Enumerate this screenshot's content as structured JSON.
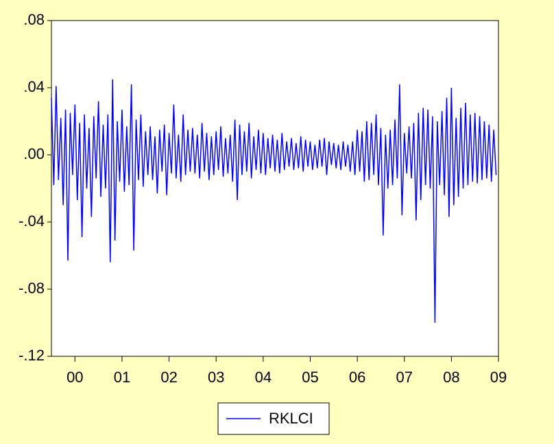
{
  "chart_data": {
    "type": "line",
    "x": [
      2000,
      2000.05,
      2000.1,
      2000.15,
      2000.2,
      2000.25,
      2000.3,
      2000.35,
      2000.4,
      2000.45,
      2000.5,
      2000.55,
      2000.6,
      2000.65,
      2000.7,
      2000.75,
      2000.8,
      2000.85,
      2000.9,
      2000.95,
      2001,
      2001.05,
      2001.1,
      2001.15,
      2001.2,
      2001.25,
      2001.3,
      2001.35,
      2001.4,
      2001.45,
      2001.5,
      2001.55,
      2001.6,
      2001.65,
      2001.7,
      2001.75,
      2001.8,
      2001.85,
      2001.9,
      2001.95,
      2002,
      2002.05,
      2002.1,
      2002.15,
      2002.2,
      2002.25,
      2002.3,
      2002.35,
      2002.4,
      2002.45,
      2002.5,
      2002.55,
      2002.6,
      2002.65,
      2002.7,
      2002.75,
      2002.8,
      2002.85,
      2002.9,
      2002.95,
      2003,
      2003.05,
      2003.1,
      2003.15,
      2003.2,
      2003.25,
      2003.3,
      2003.35,
      2003.4,
      2003.45,
      2003.5,
      2003.55,
      2003.6,
      2003.65,
      2003.7,
      2003.75,
      2003.8,
      2003.85,
      2003.9,
      2003.95,
      2004,
      2004.05,
      2004.1,
      2004.15,
      2004.2,
      2004.25,
      2004.3,
      2004.35,
      2004.4,
      2004.45,
      2004.5,
      2004.55,
      2004.6,
      2004.65,
      2004.7,
      2004.75,
      2004.8,
      2004.85,
      2004.9,
      2004.95,
      2005,
      2005.05,
      2005.1,
      2005.15,
      2005.2,
      2005.25,
      2005.3,
      2005.35,
      2005.4,
      2005.45,
      2005.5,
      2005.55,
      2005.6,
      2005.65,
      2005.7,
      2005.75,
      2005.8,
      2005.85,
      2005.9,
      2005.95,
      2006,
      2006.05,
      2006.1,
      2006.15,
      2006.2,
      2006.25,
      2006.3,
      2006.35,
      2006.4,
      2006.45,
      2006.5,
      2006.55,
      2006.6,
      2006.65,
      2006.7,
      2006.75,
      2006.8,
      2006.85,
      2006.9,
      2006.95,
      2007,
      2007.05,
      2007.1,
      2007.15,
      2007.2,
      2007.25,
      2007.3,
      2007.35,
      2007.4,
      2007.45,
      2007.5,
      2007.55,
      2007.6,
      2007.65,
      2007.7,
      2007.75,
      2007.8,
      2007.85,
      2007.9,
      2007.95,
      2008,
      2008.05,
      2008.1,
      2008.15,
      2008.2,
      2008.25,
      2008.3,
      2008.35,
      2008.4,
      2008.45,
      2008.5,
      2008.55,
      2008.6,
      2008.65,
      2008.7,
      2008.75,
      2008.8,
      2008.85,
      2008.9,
      2008.95,
      2009,
      2009.05,
      2009.1,
      2009.15,
      2009.2,
      2009.25,
      2009.3,
      2009.35,
      2009.4,
      2009.45
    ],
    "series": [
      {
        "name": "RKLCI",
        "color": "#0000ff",
        "values": [
          0.034,
          -0.018,
          0.041,
          -0.015,
          0.022,
          -0.03,
          0.027,
          -0.063,
          0.025,
          -0.012,
          0.03,
          -0.027,
          0.019,
          -0.049,
          0.024,
          -0.02,
          0.016,
          -0.037,
          0.023,
          -0.014,
          0.032,
          -0.025,
          0.018,
          -0.02,
          0.024,
          -0.064,
          0.045,
          -0.051,
          0.02,
          -0.016,
          0.027,
          -0.022,
          0.017,
          -0.018,
          0.042,
          -0.057,
          0.021,
          -0.015,
          0.024,
          -0.019,
          0.014,
          -0.012,
          0.017,
          -0.015,
          0.011,
          -0.023,
          0.015,
          -0.01,
          0.018,
          -0.024,
          0.013,
          -0.011,
          0.03,
          -0.014,
          0.012,
          -0.016,
          0.024,
          -0.012,
          0.015,
          -0.01,
          0.016,
          -0.011,
          0.012,
          -0.014,
          0.019,
          -0.01,
          0.013,
          -0.015,
          0.011,
          -0.012,
          0.014,
          -0.009,
          0.017,
          -0.013,
          0.01,
          -0.011,
          0.012,
          -0.016,
          0.021,
          -0.027,
          0.018,
          -0.012,
          0.014,
          -0.01,
          0.019,
          -0.014,
          0.011,
          -0.009,
          0.015,
          -0.011,
          0.013,
          -0.012,
          0.01,
          -0.008,
          0.012,
          -0.01,
          0.009,
          -0.011,
          0.013,
          -0.009,
          0.008,
          -0.007,
          0.01,
          -0.009,
          0.007,
          -0.008,
          0.011,
          -0.01,
          0.009,
          -0.007,
          0.008,
          -0.009,
          0.006,
          -0.008,
          0.009,
          -0.007,
          0.01,
          -0.012,
          0.008,
          -0.006,
          0.007,
          -0.008,
          0.006,
          -0.009,
          0.008,
          -0.007,
          0.006,
          -0.01,
          0.008,
          -0.012,
          0.015,
          -0.01,
          0.014,
          -0.016,
          0.02,
          -0.015,
          0.019,
          -0.012,
          0.024,
          -0.018,
          0.016,
          -0.048,
          0.012,
          -0.02,
          0.015,
          -0.018,
          0.021,
          -0.014,
          0.042,
          -0.036,
          0.013,
          -0.011,
          0.017,
          -0.014,
          0.019,
          -0.039,
          0.025,
          -0.027,
          0.028,
          -0.018,
          0.027,
          -0.02,
          0.023,
          -0.1,
          0.02,
          -0.018,
          0.026,
          -0.024,
          0.034,
          -0.037,
          0.04,
          -0.03,
          0.022,
          -0.025,
          0.028,
          -0.02,
          0.031,
          -0.018,
          0.024,
          -0.016,
          0.025,
          -0.017,
          0.023,
          -0.015,
          0.02,
          -0.014,
          0.018,
          -0.016,
          0.015,
          -0.012
        ]
      }
    ],
    "xlim": [
      2000,
      2009.5
    ],
    "xticks": [
      {
        "value": 2000.5,
        "label": "00"
      },
      {
        "value": 2001.5,
        "label": "01"
      },
      {
        "value": 2002.5,
        "label": "02"
      },
      {
        "value": 2003.5,
        "label": "03"
      },
      {
        "value": 2004.5,
        "label": "04"
      },
      {
        "value": 2005.5,
        "label": "05"
      },
      {
        "value": 2006.5,
        "label": "06"
      },
      {
        "value": 2007.5,
        "label": "07"
      },
      {
        "value": 2008.5,
        "label": "08"
      },
      {
        "value": 2009.5,
        "label": "09"
      }
    ],
    "ylim": [
      -0.12,
      0.08
    ],
    "yticks": [
      {
        "value": -0.12,
        "label": "-.12"
      },
      {
        "value": -0.08,
        "label": "-.08"
      },
      {
        "value": -0.04,
        "label": "-.04"
      },
      {
        "value": 0,
        "label": ".00"
      },
      {
        "value": 0.04,
        "label": ".04"
      },
      {
        "value": 0.08,
        "label": ".08"
      }
    ],
    "grid": false,
    "legend": "bottom"
  }
}
